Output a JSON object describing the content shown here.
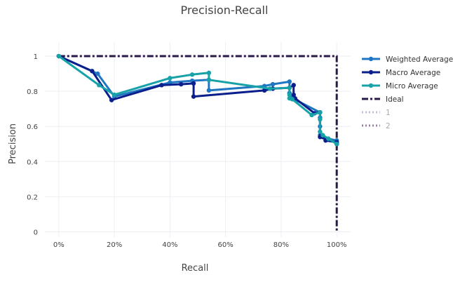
{
  "chart_data": {
    "type": "line",
    "title": "Precision-Recall",
    "xlabel": "Recall",
    "ylabel": "Precision",
    "xlim": [
      -0.05,
      1.05
    ],
    "ylim": [
      -0.03,
      1.08
    ],
    "x_ticks": [
      0,
      0.2,
      0.4,
      0.6,
      0.8,
      1.0
    ],
    "x_tick_labels": [
      "0%",
      "20%",
      "40%",
      "60%",
      "80%",
      "100%"
    ],
    "y_ticks": [
      0,
      0.2,
      0.4,
      0.6,
      0.8,
      1.0
    ],
    "y_tick_labels": [
      "0",
      "0.2",
      "0.4",
      "0.6",
      "0.8",
      "1"
    ],
    "grid": true,
    "legend_position": "right",
    "series": [
      {
        "name": "Weighted Average",
        "color": "#1f77c4",
        "dash": "solid",
        "markers": true,
        "legend_muted": false,
        "x": [
          0,
          0.14,
          0.2,
          0.4,
          0.48,
          0.54,
          0.54,
          0.74,
          0.77,
          0.83,
          0.83,
          0.84,
          0.84,
          0.94,
          0.94,
          0.94,
          0.94,
          0.95,
          0.97,
          1.0,
          1.0
        ],
        "y": [
          1.0,
          0.9,
          0.77,
          0.85,
          0.86,
          0.865,
          0.805,
          0.83,
          0.84,
          0.855,
          0.79,
          0.77,
          0.76,
          0.68,
          0.65,
          0.6,
          0.55,
          0.54,
          0.53,
          0.52,
          0.5
        ]
      },
      {
        "name": "Macro Average",
        "color": "#0a1f8c",
        "dash": "solid",
        "markers": true,
        "legend_muted": false,
        "x": [
          0,
          0.12,
          0.19,
          0.37,
          0.44,
          0.485,
          0.485,
          0.74,
          0.77,
          0.83,
          0.845,
          0.845,
          0.85,
          0.92,
          0.94,
          0.94,
          0.95,
          0.96,
          1.0,
          1.0
        ],
        "y": [
          1.0,
          0.915,
          0.75,
          0.835,
          0.84,
          0.845,
          0.77,
          0.805,
          0.815,
          0.82,
          0.835,
          0.78,
          0.76,
          0.675,
          0.68,
          0.54,
          0.54,
          0.52,
          0.51,
          0.5
        ]
      },
      {
        "name": "Micro Average",
        "color": "#17a2a8",
        "dash": "solid",
        "markers": true,
        "legend_muted": false,
        "x": [
          0,
          0.145,
          0.2,
          0.4,
          0.48,
          0.54,
          0.54,
          0.76,
          0.83,
          0.83,
          0.83,
          0.84,
          0.91,
          0.94,
          0.94,
          0.94,
          0.95,
          0.97,
          1.0
        ],
        "y": [
          1.0,
          0.835,
          0.78,
          0.875,
          0.895,
          0.905,
          0.865,
          0.815,
          0.82,
          0.78,
          0.76,
          0.755,
          0.665,
          0.68,
          0.64,
          0.57,
          0.55,
          0.53,
          0.5
        ]
      },
      {
        "name": "Ideal",
        "color": "#2a1a48",
        "dash": "dashdot",
        "markers": false,
        "legend_muted": false,
        "x": [
          0,
          1,
          1
        ],
        "y": [
          1,
          1,
          0
        ]
      },
      {
        "name": "1",
        "color": "#c5bcd8",
        "dash": "dot",
        "markers": false,
        "legend_muted": true,
        "x": [],
        "y": []
      },
      {
        "name": "2",
        "color": "#9a7fa8",
        "dash": "dot",
        "markers": false,
        "legend_muted": true,
        "x": [],
        "y": []
      }
    ]
  }
}
